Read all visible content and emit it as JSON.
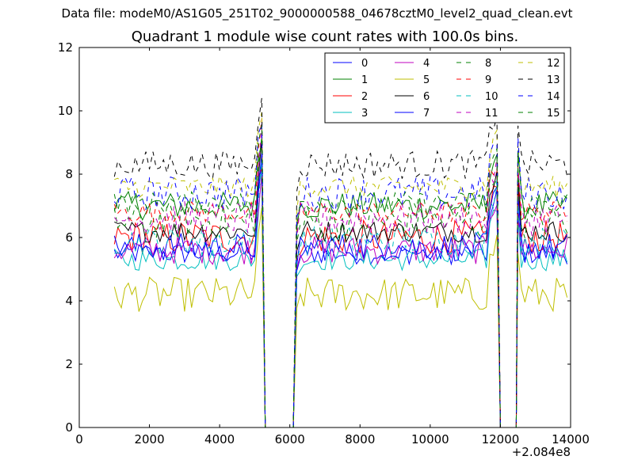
{
  "figure": {
    "suptitle": "Data file: modeM0/AS1G05_251T02_9000000588_04678cztM0_level2_quad_clean.evt",
    "x_offset_label": "+2.084e8"
  },
  "chart_data": {
    "type": "line",
    "title": "Quadrant 1 module wise count rates with 100.0s bins.",
    "xlabel": "",
    "ylabel": "",
    "xlim": [
      0,
      14000
    ],
    "ylim": [
      0,
      12
    ],
    "x_ticks": [
      "0",
      "2000",
      "4000",
      "6000",
      "8000",
      "10000",
      "12000",
      "14000"
    ],
    "y_ticks": [
      "0",
      "2",
      "4",
      "6",
      "8",
      "10",
      "12"
    ],
    "x_offset": 208400000,
    "grid": false,
    "legend_position": "top-right",
    "legend_columns": 4,
    "bin_seconds": 100,
    "data_segments": [
      [
        1000,
        5200
      ],
      [
        6200,
        11900
      ],
      [
        12600,
        13900
      ]
    ],
    "gaps": [
      [
        5350,
        6100
      ],
      [
        12050,
        12450
      ]
    ],
    "series": [
      {
        "name": "0",
        "color": "#0000ff",
        "style": "solid",
        "mean": 5.5
      },
      {
        "name": "1",
        "color": "#008000",
        "style": "solid",
        "mean": 7.0
      },
      {
        "name": "2",
        "color": "#ff0000",
        "style": "solid",
        "mean": 6.0
      },
      {
        "name": "3",
        "color": "#00bfbf",
        "style": "solid",
        "mean": 5.3
      },
      {
        "name": "4",
        "color": "#bf00bf",
        "style": "solid",
        "mean": 5.6
      },
      {
        "name": "5",
        "color": "#bfbf00",
        "style": "solid",
        "mean": 4.2
      },
      {
        "name": "6",
        "color": "#000000",
        "style": "solid",
        "mean": 6.2
      },
      {
        "name": "7",
        "color": "#0000ff",
        "style": "solid",
        "mean": 5.7
      },
      {
        "name": "8",
        "color": "#008000",
        "style": "dashed",
        "mean": 6.5
      },
      {
        "name": "9",
        "color": "#ff0000",
        "style": "dashed",
        "mean": 6.8
      },
      {
        "name": "10",
        "color": "#00bfbf",
        "style": "dashed",
        "mean": 5.9
      },
      {
        "name": "11",
        "color": "#bf00bf",
        "style": "dashed",
        "mean": 6.6
      },
      {
        "name": "12",
        "color": "#bfbf00",
        "style": "dashed",
        "mean": 7.6
      },
      {
        "name": "13",
        "color": "#000000",
        "style": "dashed",
        "mean": 8.3
      },
      {
        "name": "14",
        "color": "#0000ff",
        "style": "dashed",
        "mean": 7.4
      },
      {
        "name": "15",
        "color": "#008000",
        "style": "dashed",
        "mean": 7.1
      }
    ]
  }
}
